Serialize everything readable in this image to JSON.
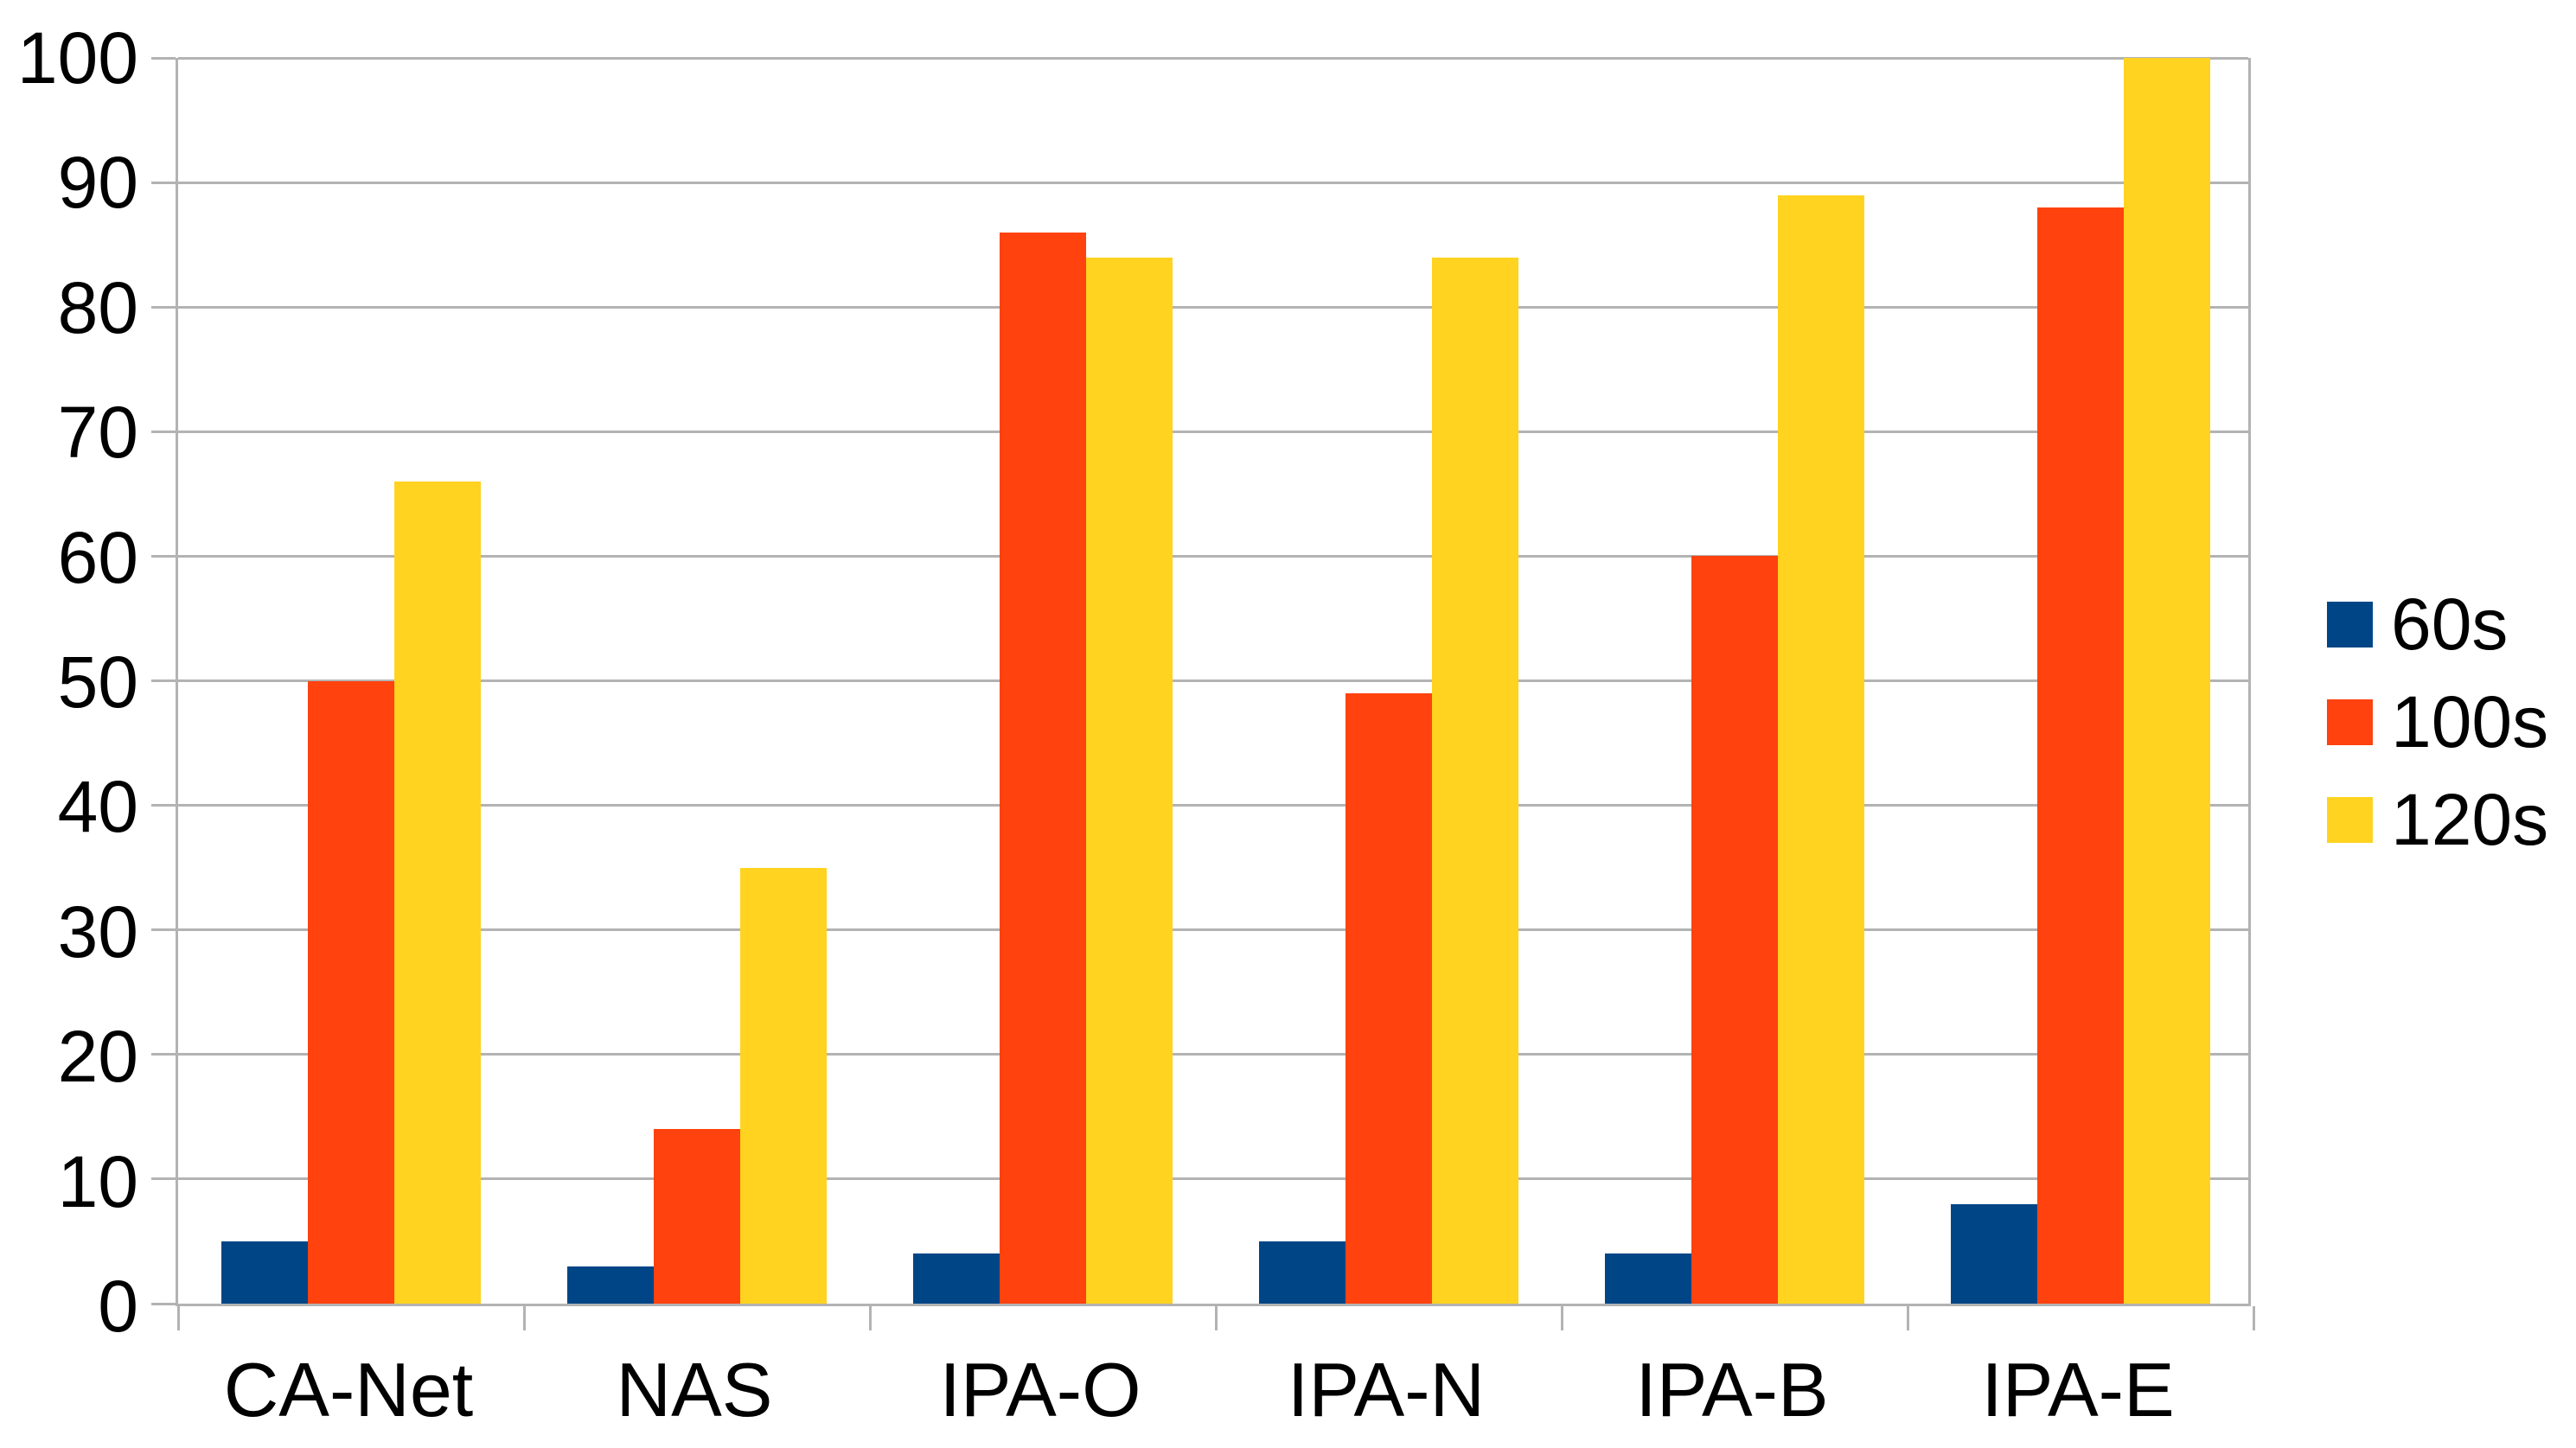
{
  "chart_data": {
    "type": "bar",
    "title": "",
    "xlabel": "",
    "ylabel": "",
    "categories": [
      "CA-Net",
      "NAS",
      "IPA-O",
      "IPA-N",
      "IPA-B",
      "IPA-E"
    ],
    "series": [
      {
        "name": "60s",
        "color": "#004586",
        "values": [
          5,
          3,
          4,
          5,
          4,
          8
        ]
      },
      {
        "name": "100s",
        "color": "#FF420E",
        "values": [
          50,
          14,
          86,
          49,
          60,
          88
        ]
      },
      {
        "name": "120s",
        "color": "#FFD320",
        "values": [
          66,
          35,
          84,
          84,
          89,
          100
        ]
      }
    ],
    "ylim": [
      0,
      100
    ],
    "ytick_step": 10,
    "ytick_labels": [
      "0",
      "10",
      "20",
      "30",
      "40",
      "50",
      "60",
      "70",
      "80",
      "90",
      "100"
    ],
    "grid": true,
    "legend_position": "right",
    "legend_labels": [
      "60s",
      "100s",
      "120s"
    ],
    "colors": {
      "grid": "#b3b3b3",
      "axis": "#b3b3b3",
      "text": "#000000",
      "background": "#ffffff"
    }
  }
}
